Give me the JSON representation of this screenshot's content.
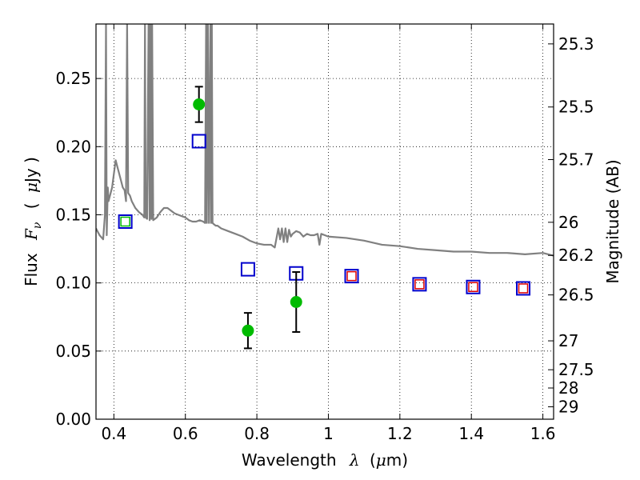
{
  "chart_data": {
    "type": "scatter",
    "xlim": [
      0.35,
      1.63
    ],
    "ylim": [
      0.0,
      0.29
    ],
    "grid": true,
    "x_ticks": [
      0.4,
      0.6,
      0.8,
      1.0,
      1.2,
      1.4,
      1.6
    ],
    "x_tick_labels": [
      "0.4",
      "0.6",
      "0.8",
      "1",
      "1.2",
      "1.4",
      "1.6"
    ],
    "y_ticks": [
      0.0,
      0.05,
      0.1,
      0.15,
      0.2,
      0.25
    ],
    "y_tick_labels": [
      "0.00",
      "0.05",
      "0.10",
      "0.15",
      "0.20",
      "0.25"
    ],
    "xlabel": {
      "text": "Wavelength",
      "symbol": "λ",
      "unit_open": "(",
      "unit_mu": "μ",
      "unit_rest": "m)"
    },
    "ylabel": {
      "text": "Flux",
      "symbol": "F",
      "subscript": "ν",
      "unit_open": "(",
      "unit_mu": "μ",
      "unit_rest": "Jy )"
    },
    "y2label": "Magnitude (AB)",
    "y2_ticks": [
      {
        "label": "25.3",
        "flux": 0.2754
      },
      {
        "label": "25.5",
        "flux": 0.2291
      },
      {
        "label": "25.7",
        "flux": 0.1905
      },
      {
        "label": "26",
        "flux": 0.1445
      },
      {
        "label": "26.2",
        "flux": 0.1202
      },
      {
        "label": "26.5",
        "flux": 0.0912
      },
      {
        "label": "27",
        "flux": 0.0575
      },
      {
        "label": "27.5",
        "flux": 0.0363
      },
      {
        "label": "28",
        "flux": 0.0229
      },
      {
        "label": "29",
        "flux": 0.0091
      }
    ],
    "colors": {
      "spectrum": "#808080",
      "observed": "#00bb00",
      "model_blue": "#0000cc",
      "model_red": "#dd0000",
      "model_green": "#00bb00"
    },
    "spectrum": {
      "name": "",
      "x": [
        0.35,
        0.36,
        0.37,
        0.375,
        0.378,
        0.38,
        0.383,
        0.385,
        0.39,
        0.395,
        0.4,
        0.405,
        0.41,
        0.415,
        0.42,
        0.425,
        0.43,
        0.434,
        0.437,
        0.44,
        0.445,
        0.45,
        0.46,
        0.47,
        0.48,
        0.485,
        0.487,
        0.489,
        0.493,
        0.497,
        0.5,
        0.502,
        0.505,
        0.507,
        0.51,
        0.52,
        0.53,
        0.54,
        0.55,
        0.56,
        0.57,
        0.58,
        0.59,
        0.6,
        0.61,
        0.62,
        0.63,
        0.64,
        0.65,
        0.655,
        0.658,
        0.66,
        0.663,
        0.666,
        0.67,
        0.672,
        0.674,
        0.676,
        0.68,
        0.685,
        0.69,
        0.7,
        0.72,
        0.74,
        0.76,
        0.78,
        0.8,
        0.82,
        0.84,
        0.85,
        0.86,
        0.865,
        0.87,
        0.875,
        0.88,
        0.885,
        0.89,
        0.895,
        0.9,
        0.91,
        0.92,
        0.93,
        0.94,
        0.95,
        0.96,
        0.97,
        0.975,
        0.98,
        0.99,
        1.0,
        1.05,
        1.1,
        1.15,
        1.2,
        1.25,
        1.3,
        1.35,
        1.4,
        1.45,
        1.5,
        1.55,
        1.6,
        1.63
      ],
      "y": [
        0.14,
        0.135,
        0.132,
        0.15,
        0.29,
        0.135,
        0.17,
        0.16,
        0.165,
        0.17,
        0.18,
        0.19,
        0.185,
        0.18,
        0.175,
        0.17,
        0.168,
        0.16,
        0.29,
        0.166,
        0.164,
        0.16,
        0.155,
        0.152,
        0.15,
        0.148,
        0.29,
        0.148,
        0.147,
        0.29,
        0.146,
        0.29,
        0.147,
        0.29,
        0.146,
        0.148,
        0.152,
        0.155,
        0.155,
        0.153,
        0.151,
        0.15,
        0.149,
        0.148,
        0.146,
        0.145,
        0.145,
        0.146,
        0.145,
        0.144,
        0.29,
        0.144,
        0.29,
        0.144,
        0.29,
        0.144,
        0.29,
        0.144,
        0.143,
        0.142,
        0.142,
        0.14,
        0.138,
        0.136,
        0.134,
        0.131,
        0.129,
        0.128,
        0.128,
        0.126,
        0.14,
        0.132,
        0.14,
        0.13,
        0.14,
        0.13,
        0.139,
        0.134,
        0.136,
        0.138,
        0.137,
        0.134,
        0.136,
        0.135,
        0.135,
        0.136,
        0.128,
        0.136,
        0.135,
        0.134,
        0.133,
        0.131,
        0.128,
        0.127,
        0.125,
        0.124,
        0.123,
        0.123,
        0.122,
        0.122,
        0.121,
        0.122,
        0.12
      ]
    },
    "observed_points": [
      {
        "x": 0.638,
        "y": 0.231,
        "err": 0.013
      },
      {
        "x": 0.775,
        "y": 0.065,
        "err": 0.013
      },
      {
        "x": 0.91,
        "y": 0.086,
        "err": 0.022
      }
    ],
    "model_squares": [
      {
        "x": 0.432,
        "y": 0.145,
        "inner": "green"
      },
      {
        "x": 0.638,
        "y": 0.204,
        "inner": "none"
      },
      {
        "x": 0.775,
        "y": 0.11,
        "inner": "none"
      },
      {
        "x": 0.91,
        "y": 0.107,
        "inner": "none"
      },
      {
        "x": 1.065,
        "y": 0.105,
        "inner": "red"
      },
      {
        "x": 1.255,
        "y": 0.099,
        "inner": "red"
      },
      {
        "x": 1.405,
        "y": 0.097,
        "inner": "red"
      },
      {
        "x": 1.545,
        "y": 0.096,
        "inner": "red"
      }
    ]
  }
}
